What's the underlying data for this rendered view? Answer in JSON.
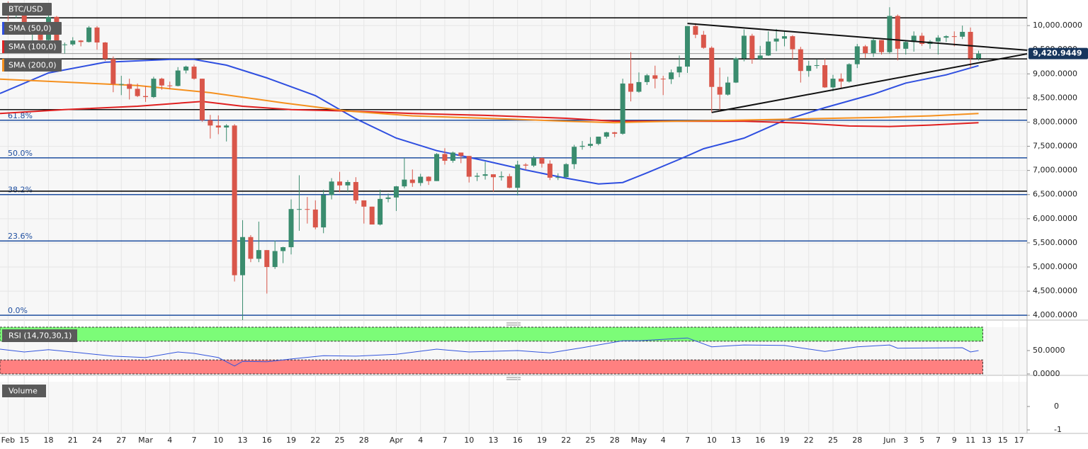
{
  "chart_data": {
    "type": "candlestick",
    "title": "BTC/USD",
    "xlim": [
      "Feb 12",
      "Jun 18"
    ],
    "ylim": [
      3900,
      10530
    ],
    "xticks": [
      {
        "value": "Feb 13",
        "label": "Feb"
      },
      {
        "value": "Feb 15",
        "label": "15"
      },
      {
        "value": "Feb 18",
        "label": "18"
      },
      {
        "value": "Feb 21",
        "label": "21"
      },
      {
        "value": "Feb 24",
        "label": "24"
      },
      {
        "value": "Feb 27",
        "label": "27"
      },
      {
        "value": "Mar 1",
        "label": "Mar"
      },
      {
        "value": "Mar 4",
        "label": "4"
      },
      {
        "value": "Mar 7",
        "label": "7"
      },
      {
        "value": "Mar 10",
        "label": "10"
      },
      {
        "value": "Mar 13",
        "label": "13"
      },
      {
        "value": "Mar 16",
        "label": "16"
      },
      {
        "value": "Mar 19",
        "label": "19"
      },
      {
        "value": "Mar 22",
        "label": "22"
      },
      {
        "value": "Mar 25",
        "label": "25"
      },
      {
        "value": "Mar 28",
        "label": "28"
      },
      {
        "value": "Apr 1",
        "label": "Apr"
      },
      {
        "value": "Apr 4",
        "label": "4"
      },
      {
        "value": "Apr 7",
        "label": "7"
      },
      {
        "value": "Apr 10",
        "label": "10"
      },
      {
        "value": "Apr 13",
        "label": "13"
      },
      {
        "value": "Apr 16",
        "label": "16"
      },
      {
        "value": "Apr 19",
        "label": "19"
      },
      {
        "value": "Apr 22",
        "label": "22"
      },
      {
        "value": "Apr 25",
        "label": "25"
      },
      {
        "value": "Apr 28",
        "label": "28"
      },
      {
        "value": "May 1",
        "label": "May"
      },
      {
        "value": "May 4",
        "label": "4"
      },
      {
        "value": "May 7",
        "label": "7"
      },
      {
        "value": "May 10",
        "label": "10"
      },
      {
        "value": "May 13",
        "label": "13"
      },
      {
        "value": "May 16",
        "label": "16"
      },
      {
        "value": "May 19",
        "label": "19"
      },
      {
        "value": "May 22",
        "label": "22"
      },
      {
        "value": "May 25",
        "label": "25"
      },
      {
        "value": "May 28",
        "label": "28"
      },
      {
        "value": "Jun 1",
        "label": "Jun"
      },
      {
        "value": "Jun 3",
        "label": "3"
      },
      {
        "value": "Jun 5",
        "label": "5"
      },
      {
        "value": "Jun 7",
        "label": "7"
      },
      {
        "value": "Jun 9",
        "label": "9"
      },
      {
        "value": "Jun 11",
        "label": "11"
      },
      {
        "value": "Jun 13",
        "label": "13"
      },
      {
        "value": "Jun 15",
        "label": "15"
      },
      {
        "value": "Jun 17",
        "label": "17"
      }
    ],
    "yticks": [
      {
        "value": 4000,
        "label": "4,000.0000"
      },
      {
        "value": 4500,
        "label": "4,500.0000"
      },
      {
        "value": 5000,
        "label": "5,000.0000"
      },
      {
        "value": 5500,
        "label": "5,500.0000"
      },
      {
        "value": 6000,
        "label": "6,000.0000"
      },
      {
        "value": 6500,
        "label": "6,500.0000"
      },
      {
        "value": 7000,
        "label": "7,000.0000"
      },
      {
        "value": 7500,
        "label": "7,500.0000"
      },
      {
        "value": 8000,
        "label": "8,000.0000"
      },
      {
        "value": 8500,
        "label": "8,500.0000"
      },
      {
        "value": 9000,
        "label": "9,000.0000"
      },
      {
        "value": 9500,
        "label": "9,500.0000"
      },
      {
        "value": 10000,
        "label": "10,000.0000"
      }
    ],
    "up_color": "#3a8c6e",
    "down_color": "#d9564a",
    "x": [
      "Feb 13",
      "Feb 14",
      "Feb 15",
      "Feb 16",
      "Feb 17",
      "Feb 18",
      "Feb 19",
      "Feb 20",
      "Feb 21",
      "Feb 22",
      "Feb 23",
      "Feb 24",
      "Feb 25",
      "Feb 26",
      "Feb 27",
      "Feb 28",
      "Feb 29",
      "Mar 1",
      "Mar 2",
      "Mar 3",
      "Mar 4",
      "Mar 5",
      "Mar 6",
      "Mar 7",
      "Mar 8",
      "Mar 9",
      "Mar 10",
      "Mar 11",
      "Mar 12",
      "Mar 13",
      "Mar 14",
      "Mar 15",
      "Mar 16",
      "Mar 17",
      "Mar 18",
      "Mar 19",
      "Mar 20",
      "Mar 21",
      "Mar 22",
      "Mar 23",
      "Mar 24",
      "Mar 25",
      "Mar 26",
      "Mar 27",
      "Mar 28",
      "Mar 29",
      "Mar 30",
      "Mar 31",
      "Apr 1",
      "Apr 2",
      "Apr 3",
      "Apr 4",
      "Apr 5",
      "Apr 6",
      "Apr 7",
      "Apr 8",
      "Apr 9",
      "Apr 10",
      "Apr 11",
      "Apr 12",
      "Apr 13",
      "Apr 14",
      "Apr 15",
      "Apr 16",
      "Apr 17",
      "Apr 18",
      "Apr 19",
      "Apr 20",
      "Apr 21",
      "Apr 22",
      "Apr 23",
      "Apr 24",
      "Apr 25",
      "Apr 26",
      "Apr 27",
      "Apr 28",
      "Apr 29",
      "Apr 30",
      "May 1",
      "May 2",
      "May 3",
      "May 4",
      "May 5",
      "May 6",
      "May 7",
      "May 8",
      "May 9",
      "May 10",
      "May 11",
      "May 12",
      "May 13",
      "May 14",
      "May 15",
      "May 16",
      "May 17",
      "May 18",
      "May 19",
      "May 20",
      "May 21",
      "May 22",
      "May 23",
      "May 24",
      "May 25",
      "May 26",
      "May 27",
      "May 28",
      "May 29",
      "May 30",
      "May 31",
      "Jun 1",
      "Jun 2",
      "Jun 3",
      "Jun 4",
      "Jun 5",
      "Jun 6",
      "Jun 7",
      "Jun 8",
      "Jun 9",
      "Jun 10",
      "Jun 11",
      "Jun 12"
    ],
    "open": [
      10280,
      10240,
      10370,
      9900,
      9930,
      9700,
      10180,
      9600,
      9610,
      9690,
      9660,
      9960,
      9650,
      9310,
      8790,
      8790,
      8690,
      8540,
      8520,
      8900,
      8760,
      8750,
      9070,
      9150,
      8900,
      8040,
      7930,
      7890,
      7930,
      4830,
      5620,
      5170,
      5350,
      5000,
      5330,
      5410,
      6200,
      6200,
      6190,
      5820,
      6490,
      6770,
      6690,
      6760,
      6380,
      6250,
      5880,
      6410,
      6440,
      6670,
      6810,
      6740,
      6870,
      6780,
      7340,
      7200,
      7370,
      7300,
      6870,
      6890,
      6920,
      6860,
      6880,
      6640,
      7120,
      7100,
      7260,
      7140,
      6850,
      6860,
      7130,
      7490,
      7510,
      7550,
      7700,
      7790,
      7760,
      8800,
      8630,
      8830,
      8970,
      8900,
      8890,
      9030,
      9150,
      9990,
      9810,
      9540,
      8730,
      8570,
      8820,
      9320,
      9790,
      9310,
      9380,
      9670,
      9730,
      9780,
      9510,
      9060,
      9170,
      9180,
      8720,
      8900,
      8840,
      9200,
      9570,
      9430,
      9700,
      9450,
      10200,
      9520,
      9660,
      9790,
      9620,
      9670,
      9750,
      9780,
      9770,
      9870,
      9320
    ],
    "high": [
      10500,
      10390,
      10380,
      10050,
      9950,
      10250,
      10200,
      9650,
      9760,
      9700,
      9990,
      9990,
      9660,
      9360,
      8960,
      8900,
      8800,
      8750,
      8940,
      8920,
      8840,
      9140,
      9170,
      9190,
      8900,
      8150,
      8140,
      7960,
      7960,
      5970,
      5660,
      5940,
      5350,
      5550,
      5420,
      6400,
      6900,
      6450,
      6380,
      6600,
      6840,
      6970,
      6800,
      6860,
      6380,
      6250,
      6600,
      6520,
      6680,
      7260,
      7020,
      6930,
      6880,
      7360,
      7460,
      7390,
      7370,
      7300,
      6950,
      7180,
      6920,
      6980,
      6930,
      7200,
      7150,
      7300,
      7270,
      7210,
      6940,
      7150,
      7530,
      7610,
      7690,
      7700,
      7800,
      7800,
      8900,
      9450,
      9030,
      9000,
      9170,
      8960,
      9090,
      9380,
      9990,
      10050,
      9890,
      9570,
      9130,
      8940,
      9350,
      9920,
      9830,
      9580,
      9880,
      9930,
      9880,
      9800,
      9560,
      9270,
      9300,
      9310,
      8980,
      9010,
      9220,
      9620,
      9600,
      9730,
      9700,
      10380,
      10230,
      9680,
      9880,
      9850,
      9700,
      9800,
      9800,
      9880,
      10000,
      9960,
      9480
    ],
    "low": [
      10100,
      10150,
      9850,
      9600,
      9460,
      9620,
      9560,
      9420,
      9580,
      9570,
      9650,
      9500,
      9270,
      8620,
      8560,
      8470,
      8520,
      8420,
      8500,
      8670,
      8680,
      8740,
      9010,
      8880,
      8010,
      7660,
      7750,
      7600,
      4700,
      3900,
      5100,
      5100,
      4450,
      4960,
      5080,
      5260,
      5750,
      5900,
      5780,
      5700,
      6400,
      6550,
      6550,
      6310,
      5900,
      5880,
      5860,
      6340,
      6160,
      6630,
      6660,
      6680,
      6700,
      6780,
      7120,
      7160,
      7150,
      6750,
      6780,
      6810,
      6560,
      6790,
      6630,
      6480,
      7010,
      7070,
      7060,
      6800,
      6800,
      6840,
      7030,
      7430,
      7470,
      7520,
      7660,
      7690,
      7740,
      8430,
      8610,
      8770,
      8700,
      8560,
      8790,
      8930,
      9020,
      9740,
      9520,
      8200,
      8250,
      8550,
      8810,
      9260,
      9210,
      9290,
      9370,
      9470,
      9570,
      9300,
      8820,
      8940,
      9110,
      8710,
      8640,
      8700,
      8820,
      9120,
      9330,
      9350,
      9400,
      9420,
      9280,
      9400,
      9460,
      9580,
      9520,
      9400,
      9660,
      9570,
      9720,
      9120,
      9280
    ],
    "close": [
      10240,
      10370,
      9900,
      9930,
      9700,
      10180,
      9600,
      9610,
      9690,
      9660,
      9960,
      9650,
      9310,
      8790,
      8790,
      8690,
      8540,
      8520,
      8900,
      8760,
      8750,
      9070,
      9150,
      8900,
      8040,
      7930,
      7890,
      7930,
      4830,
      5620,
      5170,
      5350,
      5000,
      5330,
      5410,
      6200,
      6200,
      6190,
      5820,
      6490,
      6770,
      6690,
      6760,
      6380,
      6250,
      5880,
      6410,
      6440,
      6670,
      6810,
      6740,
      6870,
      6780,
      7340,
      7200,
      7370,
      7300,
      6870,
      6890,
      6920,
      6860,
      6880,
      6640,
      7120,
      7100,
      7260,
      7140,
      6850,
      6860,
      7130,
      7490,
      7510,
      7550,
      7700,
      7790,
      7760,
      8800,
      8630,
      8830,
      8970,
      8900,
      8890,
      9030,
      9150,
      9990,
      9810,
      9540,
      8730,
      8570,
      8820,
      9320,
      9790,
      9310,
      9380,
      9670,
      9730,
      9780,
      9510,
      9060,
      9170,
      9180,
      8720,
      8900,
      8840,
      9200,
      9570,
      9430,
      9700,
      9450,
      10200,
      9520,
      9660,
      9790,
      9620,
      9670,
      9750,
      9780,
      9770,
      9870,
      9320,
      9420
    ],
    "sma": [
      {
        "name": "SMA (50,0)",
        "color": "#2f4fe0",
        "x": [
          "Feb 12",
          "Feb 18",
          "Feb 25",
          "Mar 4",
          "Mar 7",
          "Mar 11",
          "Mar 16",
          "Mar 22",
          "Mar 27",
          "Apr 1",
          "Apr 6",
          "Apr 12",
          "Apr 17",
          "Apr 22",
          "Apr 26",
          "Apr 29",
          "May 2",
          "May 6",
          "May 9",
          "May 14",
          "May 19",
          "May 24",
          "May 30",
          "Jun 3",
          "Jun 8",
          "Jun 12"
        ],
        "values": [
          8594,
          9019,
          9240,
          9300,
          9300,
          9180,
          8917,
          8550,
          8070,
          7670,
          7410,
          7200,
          7010,
          6840,
          6720,
          6750,
          6950,
          7230,
          7450,
          7670,
          8040,
          8300,
          8580,
          8810,
          8980,
          9170
        ]
      },
      {
        "name": "SMA (100,0)",
        "color": "#e02020",
        "x": [
          "Feb 12",
          "Feb 20",
          "Feb 29",
          "Mar 8",
          "Mar 13",
          "Mar 19",
          "Mar 26",
          "Apr 3",
          "Apr 12",
          "Apr 22",
          "Apr 28",
          "May 5",
          "May 14",
          "May 21",
          "May 27",
          "Jun 1",
          "Jun 6",
          "Jun 12"
        ],
        "values": [
          8180,
          8260,
          8330,
          8430,
          8330,
          8260,
          8230,
          8180,
          8140,
          8080,
          8020,
          8020,
          8020,
          7980,
          7920,
          7910,
          7940,
          7990
        ]
      },
      {
        "name": "SMA (200,0)",
        "color": "#f5901e",
        "x": [
          "Feb 12",
          "Feb 20",
          "Feb 29",
          "Mar 9",
          "Mar 18",
          "Mar 26",
          "Apr 3",
          "Apr 12",
          "Apr 22",
          "Apr 28",
          "May 5",
          "May 13",
          "May 22",
          "May 31",
          "Jun 6",
          "Jun 12"
        ],
        "values": [
          8890,
          8830,
          8760,
          8610,
          8400,
          8230,
          8130,
          8080,
          8020,
          7990,
          8020,
          8040,
          8070,
          8100,
          8130,
          8180
        ]
      }
    ],
    "levels": [
      10160,
      9310,
      8260,
      6570
    ],
    "fib_levels": [
      {
        "label": "61.8%",
        "value": 8040
      },
      {
        "label": "50.0%",
        "value": 7260
      },
      {
        "label": "38.2%",
        "value": 6500
      },
      {
        "label": "23.6%",
        "value": 5540
      },
      {
        "label": "0.0%",
        "value": 4000
      }
    ],
    "trendlines": [
      {
        "x": [
          "May 7",
          "Jun 18"
        ],
        "values": [
          10045,
          9490
        ]
      },
      {
        "x": [
          "May 10",
          "Jun 18"
        ],
        "values": [
          8200,
          9415
        ]
      }
    ],
    "last_price": {
      "value": 9420.9449,
      "label": "9,420.9449"
    },
    "rsi": {
      "title": "RSI (14,70,30,1)",
      "ylim": [
        -3,
        103
      ],
      "yticks": [
        {
          "value": 50,
          "label": "50.0000"
        },
        {
          "value": 0,
          "label": "0.0000"
        }
      ],
      "overbought": [
        70,
        100
      ],
      "oversold": [
        0,
        30
      ],
      "color": "#3355dd",
      "x": [
        "Feb 12",
        "Feb 15",
        "Feb 18",
        "Feb 22",
        "Feb 26",
        "Mar 1",
        "Mar 5",
        "Mar 7",
        "Mar 10",
        "Mar 12",
        "Mar 13",
        "Mar 16",
        "Mar 19",
        "Mar 23",
        "Mar 27",
        "Apr 1",
        "Apr 6",
        "Apr 10",
        "Apr 16",
        "Apr 20",
        "Apr 24",
        "Apr 29",
        "May 1",
        "May 7",
        "May 10",
        "May 14",
        "May 19",
        "May 24",
        "May 28",
        "Jun 1",
        "Jun 2",
        "Jun 10",
        "Jun 11",
        "Jun 12"
      ],
      "values": [
        53,
        47,
        52,
        45,
        38,
        35,
        47,
        44,
        35,
        17,
        27,
        26,
        32,
        39,
        38,
        42,
        53,
        47,
        50,
        45,
        56,
        71,
        71,
        77,
        58,
        62,
        61,
        48,
        58,
        62,
        55,
        56,
        47,
        50
      ]
    },
    "volume": {
      "title": "Volume",
      "ylim": [
        -1.15,
        1.06
      ],
      "yticks": [
        0,
        -1
      ]
    }
  }
}
